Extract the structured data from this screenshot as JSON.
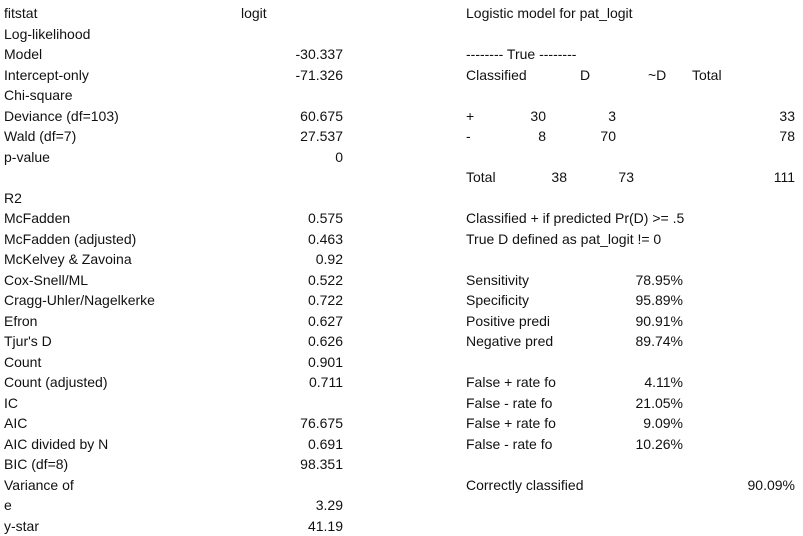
{
  "left": {
    "header": [
      "fitstat",
      "logit"
    ],
    "rows": [
      [
        "Log-likelihood",
        null
      ],
      [
        "Model",
        "-30.337"
      ],
      [
        "Intercept-only",
        "-71.326"
      ],
      [
        "Chi-square",
        null
      ],
      [
        "Deviance (df=103)",
        "60.675"
      ],
      [
        "Wald (df=7)",
        "27.537"
      ],
      [
        "p-value",
        "0"
      ],
      [
        null,
        null
      ],
      [
        "R2",
        null
      ],
      [
        "McFadden",
        "0.575"
      ],
      [
        "McFadden (adjusted)",
        "0.463"
      ],
      [
        "McKelvey & Zavoina",
        "0.92"
      ],
      [
        "Cox-Snell/ML",
        "0.522"
      ],
      [
        "Cragg-Uhler/Nagelkerke",
        "0.722"
      ],
      [
        "Efron",
        "0.627"
      ],
      [
        "Tjur's D",
        "0.626"
      ],
      [
        "Count",
        "0.901"
      ],
      [
        "Count (adjusted)",
        "0.711"
      ],
      [
        "IC",
        null
      ],
      [
        "AIC",
        "76.675"
      ],
      [
        "AIC divided by N",
        "0.691"
      ],
      [
        "BIC (df=8)",
        "98.351"
      ],
      [
        "Variance of",
        null
      ],
      [
        "e",
        "3.29"
      ],
      [
        "y-star",
        "41.19"
      ]
    ]
  },
  "right": {
    "title": "Logistic model for pat_logit",
    "banner": "-------- True --------",
    "header": [
      "Classified",
      "D",
      "~D",
      "Total"
    ],
    "rows": [
      [
        "+",
        "30",
        "3",
        "33"
      ],
      [
        "-",
        "8",
        "70",
        "78"
      ]
    ],
    "total": [
      "Total",
      "38",
      "73",
      "111"
    ],
    "notes": [
      "Classified + if predicted Pr(D) >= .5",
      "True D defined as pat_logit != 0"
    ],
    "stats": [
      [
        "Sensitivity",
        "78.95%"
      ],
      [
        "Specificity",
        "95.89%"
      ],
      [
        "Positive predi",
        "90.91%"
      ],
      [
        "Negative pred",
        "89.74%"
      ],
      null,
      [
        "False + rate fo",
        "4.11%"
      ],
      [
        "False - rate fo",
        "21.05%"
      ],
      [
        "False + rate fo",
        "9.09%"
      ],
      [
        "False - rate fo",
        "10.26%"
      ]
    ],
    "correct": [
      "Correctly classified",
      "90.09%"
    ]
  }
}
